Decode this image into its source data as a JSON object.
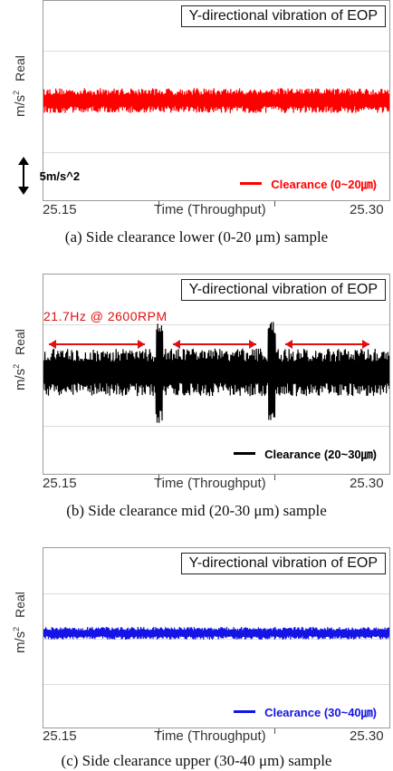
{
  "chart_data": [
    {
      "type": "line",
      "title": "Y-directional vibration of EOP",
      "ylabel": "Real",
      "yunit": "m/s",
      "yunit_exp": "2",
      "xlabel": "Time (Throughput)",
      "xticks": [
        "25.15",
        "25.30"
      ],
      "xlim": [
        25.15,
        25.3
      ],
      "series": [
        {
          "name": "Clearance  (0~20㎛)",
          "color": "#ff0000",
          "amplitude_m_s2": 2.5
        }
      ],
      "scale_label": "5m/s^2",
      "caption": "(a) Side clearance lower (0-20 μm) sample"
    },
    {
      "type": "line",
      "title": "Y-directional vibration of EOP",
      "ylabel": "Real",
      "yunit": "m/s",
      "yunit_exp": "2",
      "xlabel": "Time (Throughput)",
      "xticks": [
        "25.15",
        "25.30"
      ],
      "xlim": [
        25.15,
        25.3
      ],
      "series": [
        {
          "name": "Clearance  (20~30㎛)",
          "color": "#000000",
          "amplitude_m_s2": 3.5,
          "peak_m_s2": 7.5
        }
      ],
      "annotation": "21.7Hz @ 2600RPM",
      "caption": "(b) Side clearance mid (20-30 μm) sample"
    },
    {
      "type": "line",
      "title": "Y-directional vibration of EOP",
      "ylabel": "Real",
      "yunit": "m/s",
      "yunit_exp": "2",
      "xlabel": "Time (Throughput)",
      "xticks": [
        "25.15",
        "25.30"
      ],
      "xlim": [
        25.15,
        25.3
      ],
      "series": [
        {
          "name": "Clearance  (30~40㎛)",
          "color": "#1414e6",
          "amplitude_m_s2": 1.0
        }
      ],
      "caption": "(c) Side clearance upper (30-40 μm) sample"
    }
  ]
}
